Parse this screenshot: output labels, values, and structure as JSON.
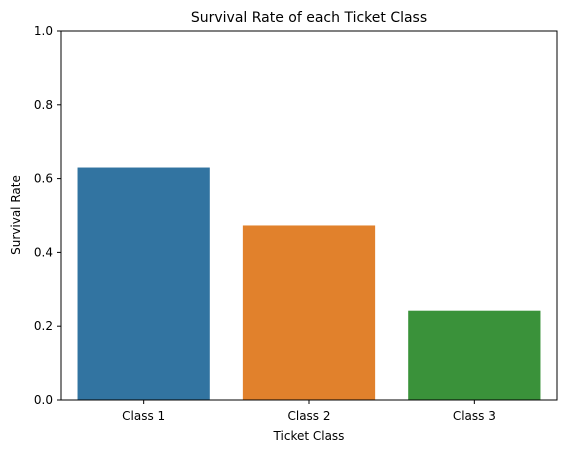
{
  "chart_data": {
    "type": "bar",
    "title": "Survival Rate of each Ticket Class",
    "xlabel": "Ticket Class",
    "ylabel": "Survival Rate",
    "categories": [
      "Class 1",
      "Class 2",
      "Class 3"
    ],
    "values": [
      0.63,
      0.473,
      0.242
    ],
    "colors": [
      "#3274a1",
      "#e1812c",
      "#3a923a"
    ],
    "ylim": [
      0,
      1.0
    ],
    "yticks": [
      "0.0",
      "0.2",
      "0.4",
      "0.6",
      "0.8",
      "1.0"
    ],
    "grid": false,
    "legend": "none"
  }
}
